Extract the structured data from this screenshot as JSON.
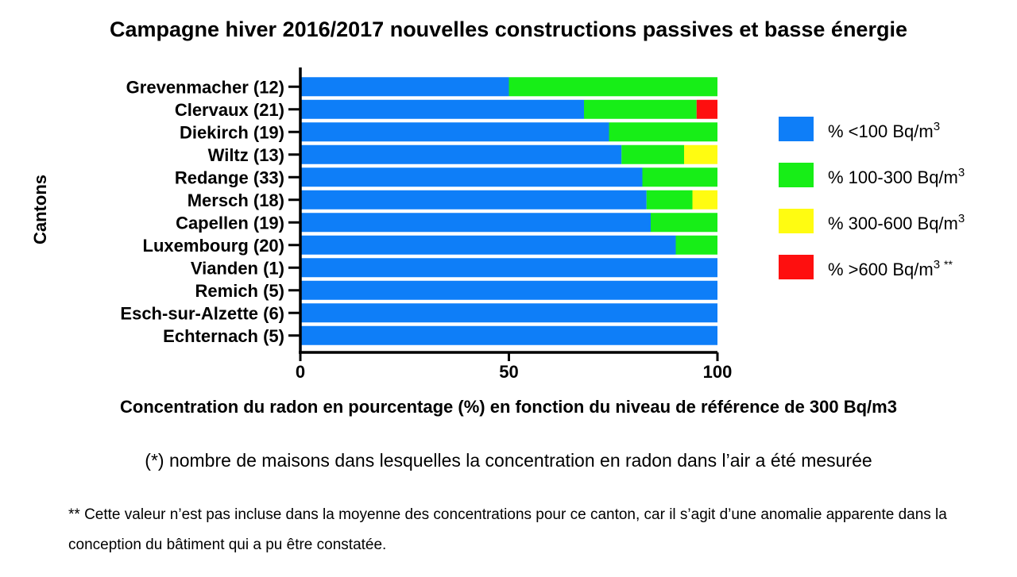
{
  "chart_data": {
    "type": "bar",
    "orientation": "horizontal",
    "stacked": true,
    "title": "Campagne hiver 2016/2017 nouvelles constructions passives et basse énergie",
    "xlabel": "Concentration du radon en pourcentage (%) en fonction du niveau de référence de 300 Bq/m3",
    "ylabel": "Cantons",
    "xlim": [
      0,
      100
    ],
    "xticks": [
      "0",
      "50",
      "100"
    ],
    "grid": false,
    "legend_position": "right",
    "categories": [
      "Grevenmacher (12)",
      "Clervaux (21)",
      "Diekirch (19)",
      "Wiltz (13)",
      "Redange (33)",
      "Mersch (18)",
      "Capellen (19)",
      "Luxembourg (20)",
      "Vianden (1)",
      "Remich (5)",
      "Esch-sur-Alzette (6)",
      "Echternach (5)"
    ],
    "series": [
      {
        "name": "% <100 Bq/m",
        "sup": "3",
        "note": "",
        "color": "#0e7ef8",
        "values": [
          50,
          68,
          74,
          77,
          82,
          83,
          84,
          90,
          100,
          100,
          100,
          100
        ]
      },
      {
        "name": "% 100-300 Bq/m",
        "sup": "3",
        "note": "",
        "color": "#17ee17",
        "values": [
          50,
          27,
          26,
          15,
          18,
          11,
          16,
          10,
          0,
          0,
          0,
          0
        ]
      },
      {
        "name": "% 300-600 Bq/m",
        "sup": "3",
        "note": "",
        "color": "#fffc11",
        "values": [
          0,
          0,
          0,
          8,
          0,
          6,
          0,
          0,
          0,
          0,
          0,
          0
        ]
      },
      {
        "name": "% >600 Bq/m",
        "sup": "3",
        "note": "**",
        "color": "#fe0f0f",
        "values": [
          0,
          5,
          0,
          0,
          0,
          0,
          0,
          0,
          0,
          0,
          0,
          0
        ]
      }
    ]
  },
  "notes": {
    "note1": "(*) nombre de maisons dans lesquelles la concentration en radon dans l’air a été mesurée",
    "note2": "** Cette valeur n’est pas incluse dans la moyenne des concentrations pour ce canton, car il s’agit d’une anomalie apparente dans la conception du bâtiment qui a pu être constatée."
  }
}
